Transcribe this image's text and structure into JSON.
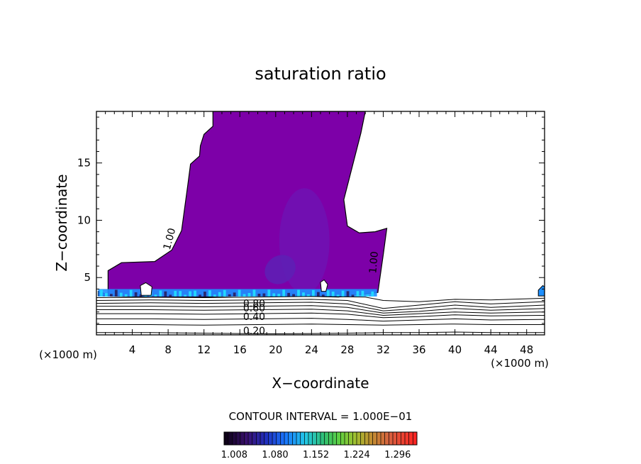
{
  "chart_data": {
    "type": "contour",
    "title": "saturation ratio",
    "xlabel": "X−coordinate",
    "ylabel": "Z−coordinate",
    "x_unit_left": "(×1000 m)",
    "x_unit_right": "(×1000 m)",
    "xlim": [
      0,
      50
    ],
    "ylim": [
      0,
      19.5
    ],
    "x_ticks": [
      4,
      8,
      12,
      16,
      20,
      24,
      28,
      32,
      36,
      40,
      44,
      48
    ],
    "y_ticks": [
      5,
      10,
      15
    ],
    "contour_interval_text": "CONTOUR INTERVAL = 1.000E−01",
    "colorbar": {
      "tick_labels": [
        "1.008",
        "1.080",
        "1.152",
        "1.224",
        "1.296"
      ],
      "range": [
        0.99,
        1.33
      ]
    },
    "contour_labels": [
      {
        "text": "1.00",
        "x": 8.5,
        "y": 8.3,
        "angle": -75
      },
      {
        "text": "1.00",
        "x": 31.3,
        "y": 6.3,
        "angle": -85
      },
      {
        "text": "0.80",
        "x": 17.6,
        "y": 2.45,
        "angle": 0
      },
      {
        "text": "0.60",
        "x": 17.6,
        "y": 2.05,
        "angle": 0
      },
      {
        "text": "0.40",
        "x": 17.6,
        "y": 1.3,
        "angle": 0
      },
      {
        "text": "0.20",
        "x": 17.6,
        "y": 0.05,
        "angle": 0
      }
    ],
    "supersaturated_region": [
      [
        0.2,
        3.8
      ],
      [
        1.3,
        3.5
      ],
      [
        1.3,
        5.6
      ],
      [
        2.8,
        6.3
      ],
      [
        6.5,
        6.4
      ],
      [
        8.4,
        7.4
      ],
      [
        9.5,
        9.1
      ],
      [
        10.2,
        13.1
      ],
      [
        10.5,
        14.9
      ],
      [
        11.5,
        15.6
      ],
      [
        11.6,
        16.5
      ],
      [
        12.0,
        17.5
      ],
      [
        13.0,
        18.2
      ],
      [
        13.0,
        19.5
      ],
      [
        30.0,
        19.5
      ],
      [
        29.5,
        17.6
      ],
      [
        27.6,
        11.8
      ],
      [
        28.0,
        9.5
      ],
      [
        29.3,
        8.9
      ],
      [
        31.1,
        9.0
      ],
      [
        32.4,
        9.3
      ],
      [
        32.0,
        7.0
      ],
      [
        31.4,
        3.7
      ],
      [
        27.0,
        3.3
      ],
      [
        22.0,
        3.4
      ],
      [
        16.0,
        3.4
      ],
      [
        12.0,
        3.3
      ],
      [
        6.0,
        3.3
      ],
      [
        0.2,
        3.4
      ]
    ],
    "clear_pockets": [
      [
        [
          5.0,
          3.45
        ],
        [
          4.9,
          4.3
        ],
        [
          5.5,
          4.55
        ],
        [
          6.2,
          4.2
        ],
        [
          6.1,
          3.45
        ]
      ],
      [
        [
          25.1,
          3.8
        ],
        [
          25.0,
          4.6
        ],
        [
          25.4,
          4.8
        ],
        [
          25.8,
          4.4
        ],
        [
          25.6,
          3.8
        ]
      ]
    ],
    "interior_cores": [
      {
        "cx": 23.2,
        "cy": 8.2,
        "rx": 2.8,
        "ry": 4.6,
        "value": 1.01
      },
      {
        "cx": 20.5,
        "cy": 5.7,
        "rx": 1.8,
        "ry": 1.2,
        "value": 1.02
      }
    ],
    "small_cloud_right": [
      [
        49.3,
        3.4
      ],
      [
        49.3,
        3.9
      ],
      [
        49.8,
        4.3
      ],
      [
        50,
        4.2
      ],
      [
        50,
        3.4
      ]
    ],
    "subsaturated_contours": [
      {
        "level": 0.95,
        "points": [
          [
            0,
            3.25
          ],
          [
            6,
            3.28
          ],
          [
            12,
            3.25
          ],
          [
            18,
            3.3
          ],
          [
            24,
            3.35
          ],
          [
            30,
            3.3
          ],
          [
            32,
            3.0
          ],
          [
            36,
            2.9
          ],
          [
            40,
            3.1
          ],
          [
            44,
            3.05
          ],
          [
            50,
            3.2
          ]
        ]
      },
      {
        "level": 0.9,
        "points": [
          [
            0,
            3.0
          ],
          [
            6,
            3.05
          ],
          [
            12,
            3.0
          ],
          [
            18,
            3.05
          ],
          [
            24,
            3.1
          ],
          [
            28,
            3.0
          ],
          [
            32,
            2.3
          ],
          [
            36,
            2.6
          ],
          [
            40,
            2.9
          ],
          [
            44,
            2.7
          ],
          [
            50,
            2.9
          ]
        ]
      },
      {
        "level": 0.8,
        "points": [
          [
            0,
            2.75
          ],
          [
            6,
            2.8
          ],
          [
            12,
            2.75
          ],
          [
            18,
            2.8
          ],
          [
            24,
            2.85
          ],
          [
            28,
            2.7
          ],
          [
            32,
            2.1
          ],
          [
            36,
            2.3
          ],
          [
            40,
            2.6
          ],
          [
            44,
            2.4
          ],
          [
            50,
            2.6
          ]
        ]
      },
      {
        "level": 0.7,
        "points": [
          [
            0,
            2.5
          ],
          [
            6,
            2.5
          ],
          [
            12,
            2.45
          ],
          [
            18,
            2.5
          ],
          [
            24,
            2.55
          ],
          [
            28,
            2.4
          ],
          [
            32,
            1.9
          ],
          [
            36,
            2.05
          ],
          [
            40,
            2.3
          ],
          [
            44,
            2.15
          ],
          [
            50,
            2.3
          ]
        ]
      },
      {
        "level": 0.6,
        "points": [
          [
            0,
            2.2
          ],
          [
            6,
            2.2
          ],
          [
            12,
            2.15
          ],
          [
            18,
            2.2
          ],
          [
            24,
            2.25
          ],
          [
            28,
            2.1
          ],
          [
            32,
            1.7
          ],
          [
            36,
            1.85
          ],
          [
            40,
            2.0
          ],
          [
            44,
            1.9
          ],
          [
            50,
            2.0
          ]
        ]
      },
      {
        "level": 0.5,
        "points": [
          [
            0,
            1.85
          ],
          [
            6,
            1.85
          ],
          [
            12,
            1.8
          ],
          [
            18,
            1.85
          ],
          [
            24,
            1.9
          ],
          [
            28,
            1.8
          ],
          [
            32,
            1.5
          ],
          [
            36,
            1.6
          ],
          [
            40,
            1.75
          ],
          [
            44,
            1.65
          ],
          [
            50,
            1.7
          ]
        ]
      },
      {
        "level": 0.4,
        "points": [
          [
            0,
            1.4
          ],
          [
            6,
            1.4
          ],
          [
            12,
            1.35
          ],
          [
            18,
            1.4
          ],
          [
            24,
            1.45
          ],
          [
            28,
            1.35
          ],
          [
            32,
            1.2
          ],
          [
            36,
            1.3
          ],
          [
            40,
            1.4
          ],
          [
            44,
            1.3
          ],
          [
            50,
            1.35
          ]
        ]
      },
      {
        "level": 0.3,
        "points": [
          [
            0,
            0.9
          ],
          [
            6,
            0.9
          ],
          [
            12,
            0.85
          ],
          [
            18,
            0.9
          ],
          [
            24,
            0.95
          ],
          [
            28,
            0.9
          ],
          [
            32,
            0.85
          ],
          [
            36,
            0.9
          ],
          [
            40,
            0.95
          ],
          [
            44,
            0.9
          ],
          [
            50,
            0.9
          ]
        ]
      },
      {
        "level": 0.2,
        "points": [
          [
            0,
            0.2
          ],
          [
            6,
            0.2
          ],
          [
            12,
            0.15
          ],
          [
            18,
            0.1
          ],
          [
            24,
            0.12
          ],
          [
            28,
            0.15
          ],
          [
            32,
            0.2
          ],
          [
            36,
            0.2
          ],
          [
            40,
            0.25
          ],
          [
            44,
            0.2
          ],
          [
            50,
            0.2
          ]
        ]
      }
    ],
    "colors": {
      "cloud": "#7d00a8",
      "core_outer": "#6f12b3",
      "core_inner": "#5d20b5",
      "base_blue": "#1e8fff",
      "base_cyan": "#22d7ff",
      "base_dark": "#28286e"
    }
  }
}
